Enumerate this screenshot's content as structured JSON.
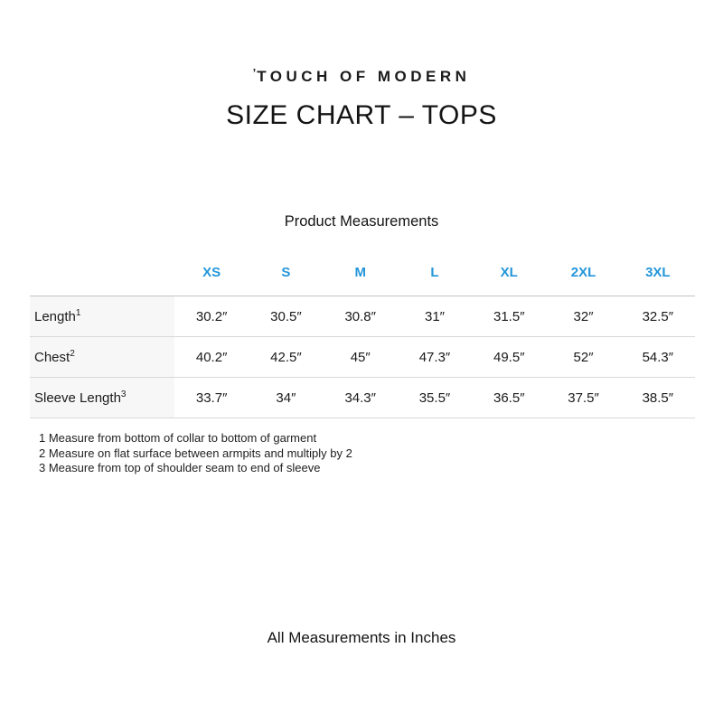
{
  "brand": {
    "tick": "’",
    "name": "TOUCH OF MODERN"
  },
  "title": "SIZE CHART – TOPS",
  "subtitle": "Product Measurements",
  "table": {
    "sizes": [
      "XS",
      "S",
      "M",
      "L",
      "XL",
      "2XL",
      "3XL"
    ],
    "rows": [
      {
        "label": "Length",
        "sup": "1",
        "values": [
          "30.2″",
          "30.5″",
          "30.8″",
          "31″",
          "31.5″",
          "32″",
          "32.5″"
        ]
      },
      {
        "label": "Chest",
        "sup": "2",
        "values": [
          "40.2″",
          "42.5″",
          "45″",
          "47.3″",
          "49.5″",
          "52″",
          "54.3″"
        ]
      },
      {
        "label": "Sleeve Length",
        "sup": "3",
        "values": [
          "33.7″",
          "34″",
          "34.3″",
          "35.5″",
          "36.5″",
          "37.5″",
          "38.5″"
        ]
      }
    ]
  },
  "footnotes": [
    "1 Measure from bottom of collar to bottom of garment",
    "2 Measure on flat surface between armpits and multiply by 2",
    "3 Measure from top of shoulder seam to end of sleeve"
  ],
  "footer_note": "All Measurements in Inches",
  "colors": {
    "accent_blue": "#2496D9"
  }
}
